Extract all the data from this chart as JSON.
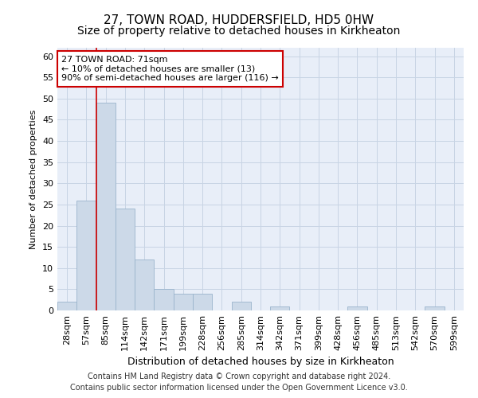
{
  "title_line1": "27, TOWN ROAD, HUDDERSFIELD, HD5 0HW",
  "title_line2": "Size of property relative to detached houses in Kirkheaton",
  "xlabel": "Distribution of detached houses by size in Kirkheaton",
  "ylabel": "Number of detached properties",
  "categories": [
    "28sqm",
    "57sqm",
    "85sqm",
    "114sqm",
    "142sqm",
    "171sqm",
    "199sqm",
    "228sqm",
    "256sqm",
    "285sqm",
    "314sqm",
    "342sqm",
    "371sqm",
    "399sqm",
    "428sqm",
    "456sqm",
    "485sqm",
    "513sqm",
    "542sqm",
    "570sqm",
    "599sqm"
  ],
  "values": [
    2,
    26,
    49,
    24,
    12,
    5,
    4,
    4,
    0,
    2,
    0,
    1,
    0,
    0,
    0,
    1,
    0,
    0,
    0,
    1,
    0
  ],
  "bar_color": "#ccd9e8",
  "bar_edge_color": "#9ab4cc",
  "vline_x": 1.5,
  "vline_color": "#cc0000",
  "annotation_text": "27 TOWN ROAD: 71sqm\n← 10% of detached houses are smaller (13)\n90% of semi-detached houses are larger (116) →",
  "annotation_box_color": "white",
  "annotation_box_edge_color": "#cc0000",
  "ylim": [
    0,
    62
  ],
  "yticks": [
    0,
    5,
    10,
    15,
    20,
    25,
    30,
    35,
    40,
    45,
    50,
    55,
    60
  ],
  "grid_color": "#c8d4e4",
  "background_color": "#e8eef8",
  "footer_line1": "Contains HM Land Registry data © Crown copyright and database right 2024.",
  "footer_line2": "Contains public sector information licensed under the Open Government Licence v3.0.",
  "title_fontsize": 11,
  "subtitle_fontsize": 10,
  "ylabel_fontsize": 8,
  "xlabel_fontsize": 9,
  "tick_fontsize": 8,
  "footer_fontsize": 7,
  "annot_fontsize": 8
}
